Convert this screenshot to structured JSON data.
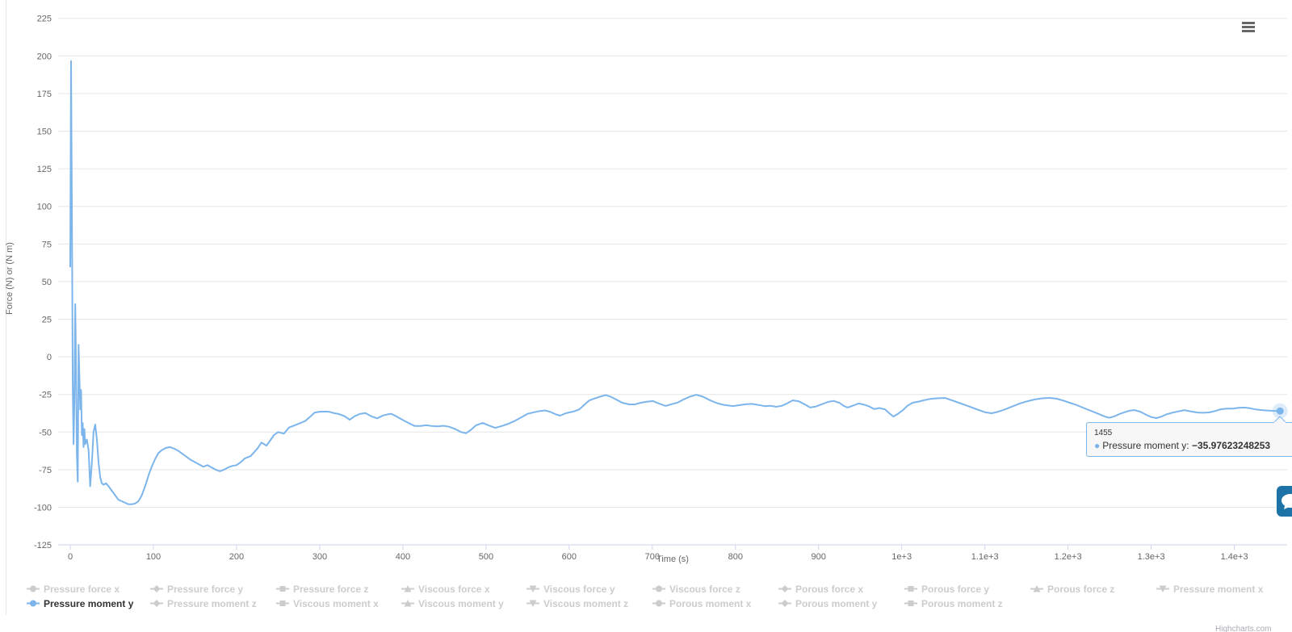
{
  "axes": {
    "y_title": "Force (N) or (N m)",
    "x_title": "Time (s)",
    "y_ticks": [
      225,
      200,
      175,
      150,
      125,
      100,
      75,
      50,
      25,
      0,
      -25,
      -50,
      -75,
      -100,
      -125
    ],
    "x_ticks": [
      {
        "t": 0,
        "label": "0"
      },
      {
        "t": 100,
        "label": "100"
      },
      {
        "t": 200,
        "label": "200"
      },
      {
        "t": 300,
        "label": "300"
      },
      {
        "t": 400,
        "label": "400"
      },
      {
        "t": 500,
        "label": "500"
      },
      {
        "t": 600,
        "label": "600"
      },
      {
        "t": 700,
        "label": "700"
      },
      {
        "t": 800,
        "label": "800"
      },
      {
        "t": 900,
        "label": "900"
      },
      {
        "t": 1000,
        "label": "1e+3"
      },
      {
        "t": 1100,
        "label": "1.1e+3"
      },
      {
        "t": 1200,
        "label": "1.2e+3"
      },
      {
        "t": 1300,
        "label": "1.3e+3"
      },
      {
        "t": 1400,
        "label": "1.4e+3"
      }
    ]
  },
  "tooltip": {
    "header": "1455",
    "series_name": "Pressure moment y:",
    "value": "−35.97623248253"
  },
  "icons": {
    "tooltip_bullet": "●",
    "export_menu": "hamburger-menu"
  },
  "credit": {
    "text": "Highcharts.com"
  },
  "colors": {
    "series": "#7cb5ec",
    "grid": "#e6e6e6",
    "axis_line": "#ccd6eb",
    "label": "#666666",
    "legend_disabled": "#cccccc",
    "legend_active": "#333333",
    "tooltip_border": "#7cb5ec",
    "side_button": "#1d72a8"
  },
  "legend": {
    "rows": [
      [
        {
          "label": "Pressure force x",
          "symbol": "circle",
          "active": false
        },
        {
          "label": "Pressure force y",
          "symbol": "diamond",
          "active": false
        },
        {
          "label": "Pressure force z",
          "symbol": "square",
          "active": false
        },
        {
          "label": "Viscous force x",
          "symbol": "triangle",
          "active": false
        },
        {
          "label": "Viscous force y",
          "symbol": "triangle-down",
          "active": false
        },
        {
          "label": "Viscous force z",
          "symbol": "circle",
          "active": false
        },
        {
          "label": "Porous force x",
          "symbol": "diamond",
          "active": false
        },
        {
          "label": "Porous force y",
          "symbol": "square",
          "active": false
        },
        {
          "label": "Porous force z",
          "symbol": "triangle",
          "active": false
        },
        {
          "label": "Pressure moment x",
          "symbol": "triangle-down",
          "active": false
        }
      ],
      [
        {
          "label": "Pressure moment y",
          "symbol": "circle",
          "active": true
        },
        {
          "label": "Pressure moment z",
          "symbol": "diamond",
          "active": false
        },
        {
          "label": "Viscous moment x",
          "symbol": "square",
          "active": false
        },
        {
          "label": "Viscous moment y",
          "symbol": "triangle",
          "active": false
        },
        {
          "label": "Viscous moment z",
          "symbol": "triangle-down",
          "active": false
        },
        {
          "label": "Porous moment x",
          "symbol": "circle",
          "active": false
        },
        {
          "label": "Porous moment y",
          "symbol": "diamond",
          "active": false
        },
        {
          "label": "Porous moment z",
          "symbol": "square",
          "active": false
        }
      ]
    ]
  },
  "chart_data": {
    "type": "line",
    "title": "",
    "xlabel": "Time (s)",
    "ylabel": "Force (N) or (N m)",
    "xlim": [
      -15,
      1462
    ],
    "ylim": [
      -125,
      225
    ],
    "grid": "horizontal",
    "legend_position": "bottom",
    "x_tick_labels": [
      "0",
      "100",
      "200",
      "300",
      "400",
      "500",
      "600",
      "700",
      "800",
      "900",
      "1e+3",
      "1.1e+3",
      "1.2e+3",
      "1.3e+3",
      "1.4e+3"
    ],
    "hidden_series": [
      "Pressure force x",
      "Pressure force y",
      "Pressure force z",
      "Viscous force x",
      "Viscous force y",
      "Viscous force z",
      "Porous force x",
      "Porous force y",
      "Porous force z",
      "Pressure moment x",
      "Pressure moment z",
      "Viscous moment x",
      "Viscous moment y",
      "Viscous moment z",
      "Porous moment x",
      "Porous moment y",
      "Porous moment z"
    ],
    "highlighted_point": {
      "x": 1455,
      "y": -35.97623248253
    },
    "series": [
      {
        "name": "Pressure moment y",
        "color": "#7cb5ec",
        "visible": true,
        "points": [
          [
            0,
            60
          ],
          [
            1,
            196.5
          ],
          [
            2,
            90
          ],
          [
            3,
            -20
          ],
          [
            4,
            -58
          ],
          [
            5,
            -30
          ],
          [
            6,
            35
          ],
          [
            7,
            -10
          ],
          [
            8,
            -65
          ],
          [
            9,
            -83
          ],
          [
            10,
            8
          ],
          [
            11,
            -12
          ],
          [
            12,
            -35
          ],
          [
            13,
            -22
          ],
          [
            14,
            -52
          ],
          [
            15,
            -44
          ],
          [
            16,
            -60
          ],
          [
            17,
            -48
          ],
          [
            18,
            -58
          ],
          [
            20,
            -55
          ],
          [
            22,
            -62
          ],
          [
            24,
            -86
          ],
          [
            26,
            -70
          ],
          [
            28,
            -50
          ],
          [
            30,
            -45
          ],
          [
            32,
            -55
          ],
          [
            34,
            -70
          ],
          [
            36,
            -80
          ],
          [
            38,
            -84
          ],
          [
            40,
            -85
          ],
          [
            43,
            -84
          ],
          [
            46,
            -86
          ],
          [
            50,
            -89
          ],
          [
            54,
            -92
          ],
          [
            58,
            -95
          ],
          [
            62,
            -96
          ],
          [
            66,
            -97
          ],
          [
            70,
            -98
          ],
          [
            74,
            -98
          ],
          [
            78,
            -97.5
          ],
          [
            82,
            -96
          ],
          [
            86,
            -92
          ],
          [
            90,
            -86
          ],
          [
            94,
            -79
          ],
          [
            98,
            -73
          ],
          [
            102,
            -68
          ],
          [
            106,
            -64
          ],
          [
            110,
            -62
          ],
          [
            115,
            -60.5
          ],
          [
            120,
            -60
          ],
          [
            125,
            -61
          ],
          [
            130,
            -62.5
          ],
          [
            135,
            -64.5
          ],
          [
            140,
            -66.5
          ],
          [
            145,
            -68.5
          ],
          [
            150,
            -70
          ],
          [
            155,
            -71.5
          ],
          [
            160,
            -73
          ],
          [
            165,
            -72
          ],
          [
            170,
            -73.5
          ],
          [
            175,
            -75
          ],
          [
            180,
            -76
          ],
          [
            185,
            -75
          ],
          [
            190,
            -73.5
          ],
          [
            195,
            -72.5
          ],
          [
            200,
            -72
          ],
          [
            205,
            -70
          ],
          [
            210,
            -67.5
          ],
          [
            217,
            -66
          ],
          [
            225,
            -61
          ],
          [
            230,
            -57
          ],
          [
            236,
            -59
          ],
          [
            240,
            -56
          ],
          [
            245,
            -52
          ],
          [
            250,
            -50
          ],
          [
            257,
            -51
          ],
          [
            263,
            -47
          ],
          [
            270,
            -45.5
          ],
          [
            277,
            -44
          ],
          [
            283,
            -42.5
          ],
          [
            288,
            -40
          ],
          [
            294,
            -37
          ],
          [
            300,
            -36.5
          ],
          [
            306,
            -36.4
          ],
          [
            312,
            -36.6
          ],
          [
            318,
            -37.5
          ],
          [
            323,
            -38
          ],
          [
            330,
            -39.5
          ],
          [
            336,
            -41.8
          ],
          [
            342,
            -39.5
          ],
          [
            348,
            -38
          ],
          [
            355,
            -37.4
          ],
          [
            362,
            -39.5
          ],
          [
            369,
            -40.9
          ],
          [
            376,
            -39
          ],
          [
            382,
            -38.2
          ],
          [
            386,
            -37.9
          ],
          [
            392,
            -39.5
          ],
          [
            400,
            -42
          ],
          [
            407,
            -44
          ],
          [
            414,
            -45.9
          ],
          [
            421,
            -46
          ],
          [
            428,
            -45.5
          ],
          [
            435,
            -46
          ],
          [
            442,
            -46.2
          ],
          [
            449,
            -45.8
          ],
          [
            456,
            -46.5
          ],
          [
            463,
            -48
          ],
          [
            470,
            -50
          ],
          [
            476,
            -50.8
          ],
          [
            482,
            -48.5
          ],
          [
            488,
            -45.5
          ],
          [
            496,
            -43.9
          ],
          [
            503,
            -45.5
          ],
          [
            511,
            -47.2
          ],
          [
            519,
            -46
          ],
          [
            527,
            -44.5
          ],
          [
            535,
            -42.5
          ],
          [
            543,
            -40
          ],
          [
            550,
            -37.9
          ],
          [
            558,
            -36.8
          ],
          [
            565,
            -36
          ],
          [
            571,
            -35.6
          ],
          [
            577,
            -36.5
          ],
          [
            583,
            -38
          ],
          [
            589,
            -39.1
          ],
          [
            596,
            -37.5
          ],
          [
            605,
            -36.4
          ],
          [
            612,
            -35
          ],
          [
            618,
            -32
          ],
          [
            624,
            -29
          ],
          [
            630,
            -27.8
          ],
          [
            637,
            -26.5
          ],
          [
            644,
            -25.4
          ],
          [
            650,
            -26.5
          ],
          [
            657,
            -28.5
          ],
          [
            664,
            -30.5
          ],
          [
            672,
            -31.6
          ],
          [
            679,
            -31.6
          ],
          [
            686,
            -30.5
          ],
          [
            694,
            -29.8
          ],
          [
            701,
            -29.4
          ],
          [
            708,
            -31
          ],
          [
            716,
            -32.6
          ],
          [
            723,
            -31.5
          ],
          [
            730,
            -30.5
          ],
          [
            737,
            -28.5
          ],
          [
            745,
            -26.5
          ],
          [
            753,
            -25.2
          ],
          [
            761,
            -26.5
          ],
          [
            770,
            -29
          ],
          [
            778,
            -30.8
          ],
          [
            786,
            -31.9
          ],
          [
            797,
            -32.7
          ],
          [
            806,
            -32
          ],
          [
            813,
            -31.5
          ],
          [
            820,
            -31.3
          ],
          [
            828,
            -32
          ],
          [
            835,
            -32.8
          ],
          [
            842,
            -32.5
          ],
          [
            849,
            -33.2
          ],
          [
            856,
            -32.5
          ],
          [
            862,
            -31
          ],
          [
            869,
            -28.9
          ],
          [
            876,
            -29.5
          ],
          [
            883,
            -31.5
          ],
          [
            890,
            -33.7
          ],
          [
            897,
            -33
          ],
          [
            904,
            -31.5
          ],
          [
            911,
            -30
          ],
          [
            918,
            -29.3
          ],
          [
            925,
            -30.5
          ],
          [
            930,
            -32.5
          ],
          [
            935,
            -33.7
          ],
          [
            941,
            -32.5
          ],
          [
            948,
            -31
          ],
          [
            955,
            -31.8
          ],
          [
            961,
            -33
          ],
          [
            967,
            -34.7
          ],
          [
            973,
            -34
          ],
          [
            980,
            -35
          ],
          [
            985,
            -37.5
          ],
          [
            990,
            -39.7
          ],
          [
            995,
            -38
          ],
          [
            1001,
            -35.6
          ],
          [
            1007,
            -32.5
          ],
          [
            1013,
            -30.5
          ],
          [
            1020,
            -29.8
          ],
          [
            1027,
            -28.8
          ],
          [
            1034,
            -28
          ],
          [
            1042,
            -27.6
          ],
          [
            1052,
            -27.3
          ],
          [
            1060,
            -28.8
          ],
          [
            1070,
            -30.8
          ],
          [
            1080,
            -32.8
          ],
          [
            1090,
            -34.8
          ],
          [
            1100,
            -36.8
          ],
          [
            1108,
            -37.5
          ],
          [
            1116,
            -36.5
          ],
          [
            1124,
            -35
          ],
          [
            1133,
            -33
          ],
          [
            1142,
            -31
          ],
          [
            1151,
            -29.5
          ],
          [
            1160,
            -28.3
          ],
          [
            1170,
            -27.5
          ],
          [
            1178,
            -27.3
          ],
          [
            1186,
            -27.8
          ],
          [
            1194,
            -29
          ],
          [
            1202,
            -30.5
          ],
          [
            1210,
            -32
          ],
          [
            1219,
            -34
          ],
          [
            1228,
            -36
          ],
          [
            1237,
            -38
          ],
          [
            1245,
            -39.8
          ],
          [
            1250,
            -40.5
          ],
          [
            1256,
            -39.5
          ],
          [
            1262,
            -38
          ],
          [
            1268,
            -36.8
          ],
          [
            1274,
            -35.8
          ],
          [
            1280,
            -35.4
          ],
          [
            1287,
            -36.5
          ],
          [
            1294,
            -38.5
          ],
          [
            1300,
            -40
          ],
          [
            1306,
            -40.7
          ],
          [
            1312,
            -39.8
          ],
          [
            1318,
            -38.3
          ],
          [
            1325,
            -37.2
          ],
          [
            1332,
            -36.3
          ],
          [
            1340,
            -35.4
          ],
          [
            1348,
            -36.3
          ],
          [
            1356,
            -37
          ],
          [
            1363,
            -37.2
          ],
          [
            1370,
            -36.9
          ],
          [
            1377,
            -36
          ],
          [
            1384,
            -34.8
          ],
          [
            1391,
            -34.4
          ],
          [
            1398,
            -34.4
          ],
          [
            1405,
            -33.9
          ],
          [
            1412,
            -33.7
          ],
          [
            1419,
            -34.2
          ],
          [
            1426,
            -35
          ],
          [
            1433,
            -35.4
          ],
          [
            1440,
            -35.7
          ],
          [
            1447,
            -35.9
          ],
          [
            1455,
            -35.97623248253
          ]
        ]
      }
    ]
  }
}
